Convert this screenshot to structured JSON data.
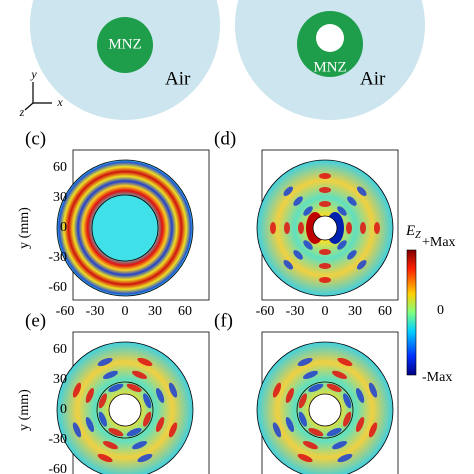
{
  "top": {
    "left": {
      "core": "MNZ",
      "outer": "Air"
    },
    "right": {
      "core": "MNZ",
      "outer": "Air"
    },
    "axes": {
      "x": "x",
      "y": "y",
      "z": "z"
    }
  },
  "panels": [
    {
      "label": "(c)",
      "y_label": "y (mm)",
      "yticks": [
        60,
        30,
        0,
        -30,
        -60
      ],
      "xticks": [
        -60,
        -30,
        0,
        30,
        60
      ]
    },
    {
      "label": "(d)",
      "xticks": [
        -60,
        -30,
        0,
        30,
        60
      ]
    },
    {
      "label": "(e)",
      "y_label": "y (mm)",
      "yticks": [
        60,
        30,
        0,
        -30,
        -60
      ]
    },
    {
      "label": "(f)"
    }
  ],
  "colorbar": {
    "title": "E",
    "subscript": "Z",
    "max": "+Max",
    "mid": 0,
    "min": "-Max"
  }
}
